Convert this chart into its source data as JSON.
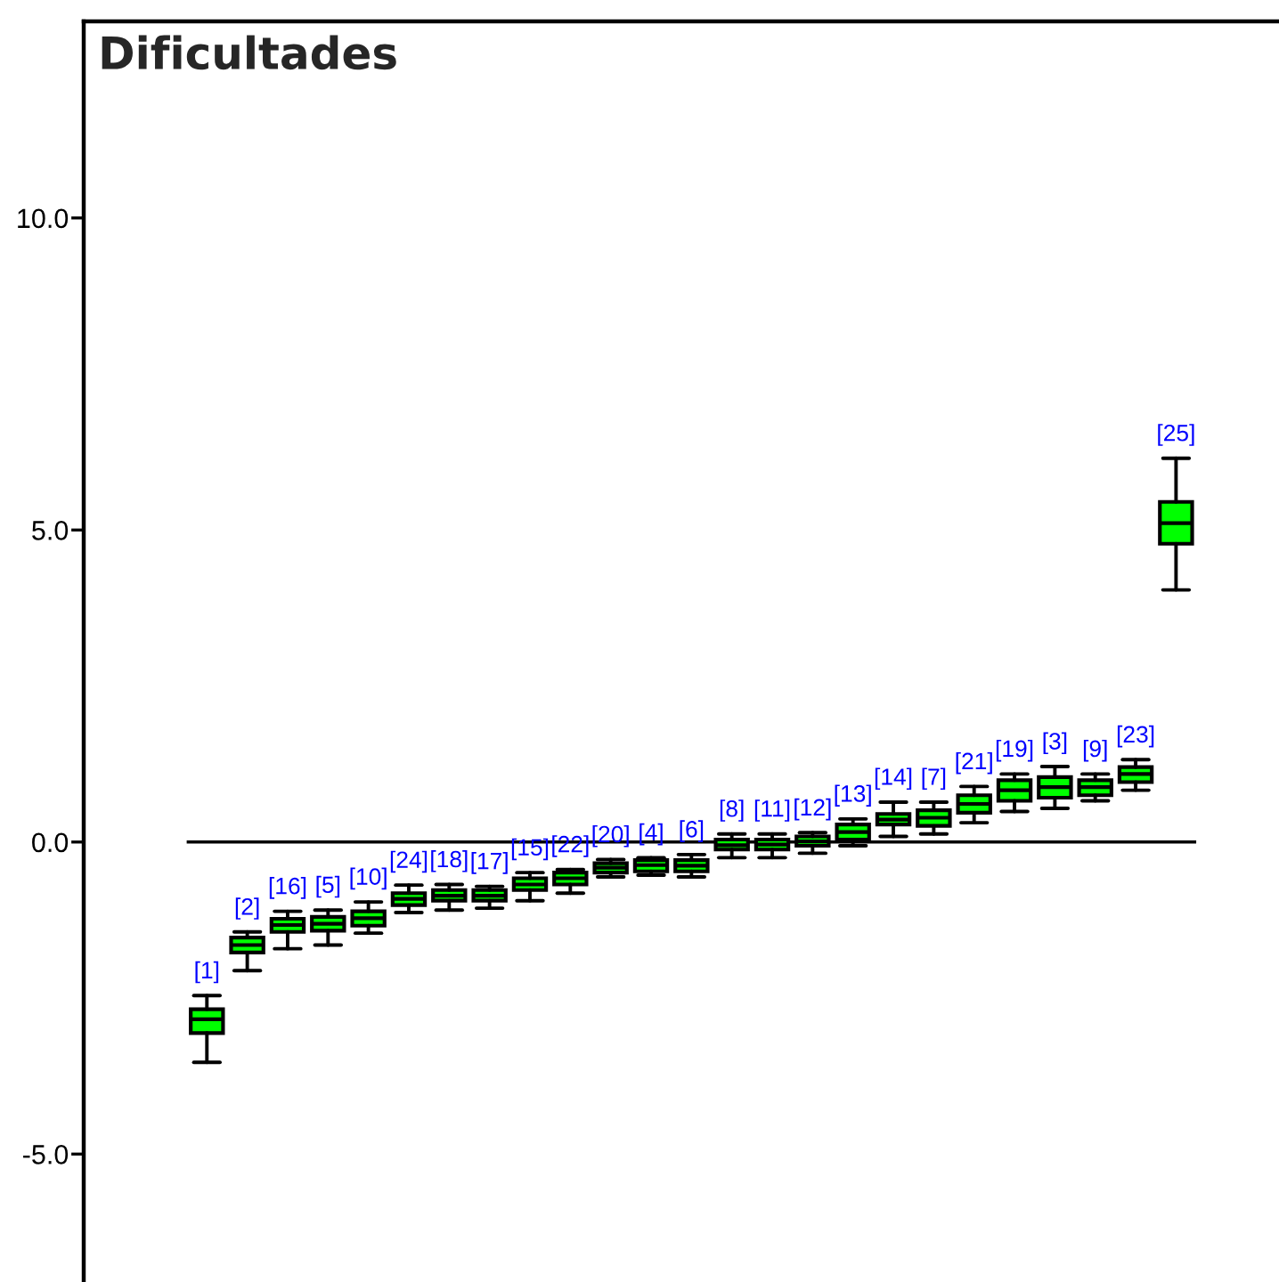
{
  "chart_data": {
    "type": "box",
    "title": "Dificultades",
    "categories": [
      "[1]",
      "[2]",
      "[16]",
      "[5]",
      "[10]",
      "[24]",
      "[18]",
      "[17]",
      "[15]",
      "[22]",
      "[20]",
      "[4]",
      "[6]",
      "[8]",
      "[11]",
      "[12]",
      "[13]",
      "[14]",
      "[7]",
      "[21]",
      "[19]",
      "[3]",
      "[9]",
      "[23]",
      "[25]"
    ],
    "boxes": [
      {
        "low": -3.53,
        "q1": -3.06,
        "median": -2.84,
        "q3": -2.68,
        "high": -2.46
      },
      {
        "low": -2.06,
        "q1": -1.77,
        "median": -1.65,
        "q3": -1.53,
        "high": -1.44
      },
      {
        "low": -1.71,
        "q1": -1.44,
        "median": -1.33,
        "q3": -1.23,
        "high": -1.11
      },
      {
        "low": -1.65,
        "q1": -1.42,
        "median": -1.31,
        "q3": -1.2,
        "high": -1.09
      },
      {
        "low": -1.46,
        "q1": -1.34,
        "median": -1.22,
        "q3": -1.11,
        "high": -0.96
      },
      {
        "low": -1.13,
        "q1": -1.01,
        "median": -0.91,
        "q3": -0.82,
        "high": -0.69
      },
      {
        "low": -1.09,
        "q1": -0.94,
        "median": -0.86,
        "q3": -0.77,
        "high": -0.68
      },
      {
        "low": -1.06,
        "q1": -0.94,
        "median": -0.86,
        "q3": -0.77,
        "high": -0.71
      },
      {
        "low": -0.94,
        "q1": -0.77,
        "median": -0.68,
        "q3": -0.58,
        "high": -0.49
      },
      {
        "low": -0.82,
        "q1": -0.68,
        "median": -0.58,
        "q3": -0.49,
        "high": -0.44
      },
      {
        "low": -0.56,
        "q1": -0.49,
        "median": -0.41,
        "q3": -0.34,
        "high": -0.28
      },
      {
        "low": -0.53,
        "q1": -0.47,
        "median": -0.37,
        "q3": -0.29,
        "high": -0.25
      },
      {
        "low": -0.56,
        "q1": -0.47,
        "median": -0.38,
        "q3": -0.29,
        "high": -0.2
      },
      {
        "low": -0.25,
        "q1": -0.12,
        "median": -0.05,
        "q3": 0.04,
        "high": 0.13
      },
      {
        "low": -0.25,
        "q1": -0.12,
        "median": -0.04,
        "q3": 0.04,
        "high": 0.13
      },
      {
        "low": -0.18,
        "q1": -0.06,
        "median": 0.01,
        "q3": 0.09,
        "high": 0.15
      },
      {
        "low": -0.06,
        "q1": 0.04,
        "median": 0.16,
        "q3": 0.28,
        "high": 0.37
      },
      {
        "low": 0.09,
        "q1": 0.28,
        "median": 0.36,
        "q3": 0.45,
        "high": 0.64
      },
      {
        "low": 0.13,
        "q1": 0.26,
        "median": 0.39,
        "q3": 0.51,
        "high": 0.64
      },
      {
        "low": 0.31,
        "q1": 0.47,
        "median": 0.61,
        "q3": 0.75,
        "high": 0.89
      },
      {
        "low": 0.49,
        "q1": 0.66,
        "median": 0.83,
        "q3": 0.99,
        "high": 1.09
      },
      {
        "low": 0.54,
        "q1": 0.71,
        "median": 0.88,
        "q3": 1.04,
        "high": 1.21
      },
      {
        "low": 0.66,
        "q1": 0.75,
        "median": 0.88,
        "q3": 0.99,
        "high": 1.09
      },
      {
        "low": 0.83,
        "q1": 0.96,
        "median": 1.09,
        "q3": 1.2,
        "high": 1.32
      },
      {
        "low": 4.04,
        "q1": 4.78,
        "median": 5.11,
        "q3": 5.45,
        "high": 6.15
      }
    ],
    "color": "#00ff00",
    "ylim": [
      -7.05,
      13.15
    ],
    "yticks": [
      {
        "value": 10,
        "label": "10.0"
      },
      {
        "value": 5,
        "label": "5.0"
      },
      {
        "value": 0,
        "label": "0.0"
      },
      {
        "value": -5,
        "label": "-5.0"
      }
    ],
    "ref_lines": [
      {
        "axis": "y",
        "value": 0,
        "color": "#000000"
      }
    ],
    "tick_labels": "y"
  }
}
